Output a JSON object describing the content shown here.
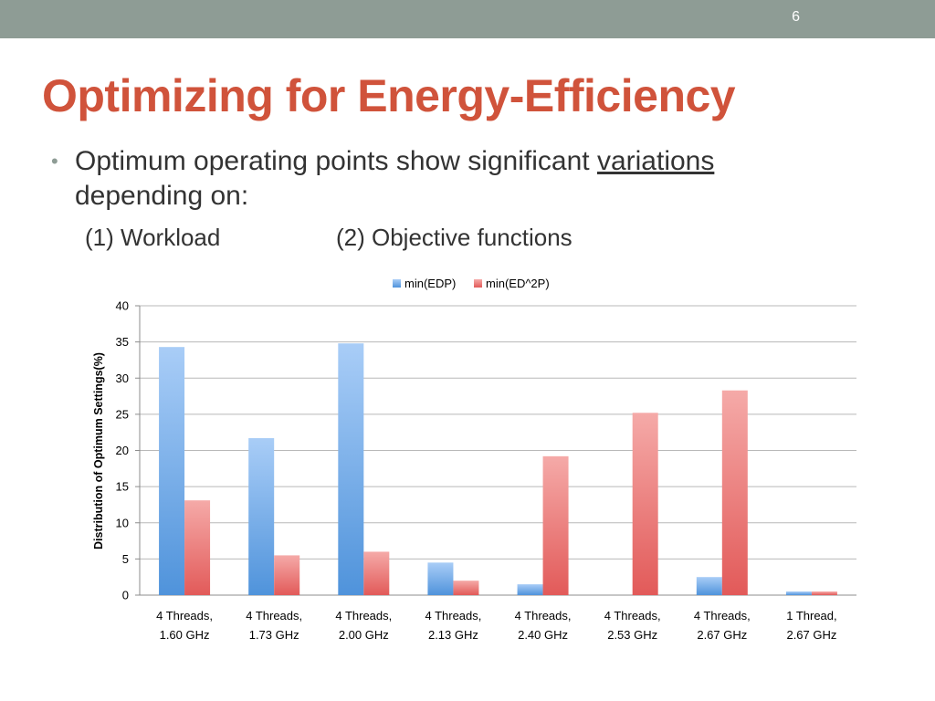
{
  "slide": {
    "page_number": "6",
    "title": "Optimizing for Energy-Efficiency",
    "bullet": {
      "text_before": "Optimum operating points show significant ",
      "underlined": "variations",
      "text_after": "depending on:"
    },
    "sub_items": [
      "(1) Workload",
      "(2) Objective functions"
    ]
  },
  "colors": {
    "top_bar": "#8e9c95",
    "title": "#d0533b",
    "series_edp": "#5b9bd5",
    "series_ed2p": "#e06666"
  },
  "chart_data": {
    "type": "bar",
    "ylabel": "Distribution  of Optimum Settings(%)",
    "xlabel": "",
    "ylim": [
      0,
      40
    ],
    "yticks": [
      0,
      5,
      10,
      15,
      20,
      25,
      30,
      35,
      40
    ],
    "grid": true,
    "legend_position": "top",
    "categories": [
      [
        "4 Threads,",
        "1.60 GHz"
      ],
      [
        "4 Threads,",
        "1.73 GHz"
      ],
      [
        "4 Threads,",
        "2.00 GHz"
      ],
      [
        "4 Threads,",
        "2.13 GHz"
      ],
      [
        "4 Threads,",
        "2.40 GHz"
      ],
      [
        "4 Threads,",
        "2.53 GHz"
      ],
      [
        "4 Threads,",
        "2.67 GHz"
      ],
      [
        "1 Thread,",
        "2.67 GHz"
      ]
    ],
    "series": [
      {
        "name": "min(EDP)",
        "values": [
          34.3,
          21.7,
          34.8,
          4.5,
          1.5,
          0,
          2.5,
          0.5
        ]
      },
      {
        "name": "min(ED^2P)",
        "values": [
          13.1,
          5.5,
          6.0,
          2.0,
          19.2,
          25.2,
          28.3,
          0.5
        ]
      }
    ]
  }
}
